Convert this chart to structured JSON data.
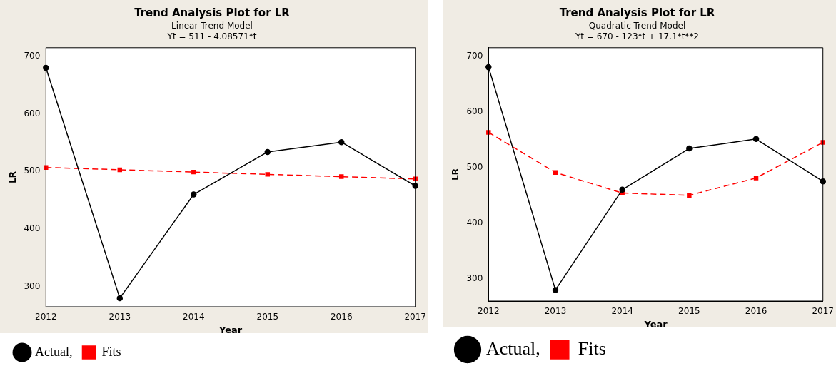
{
  "chart_data": [
    {
      "type": "line",
      "title": "Trend Analysis Plot for LR",
      "subtitle": "Linear Trend Model",
      "annotations": [
        "Yt = 511 - 4.08571*t"
      ],
      "xlabel": "Year",
      "ylabel": "LR",
      "categories": [
        "2012",
        "2013",
        "2014",
        "2015",
        "2016",
        "2017"
      ],
      "series": [
        {
          "name": "Actual,",
          "color": "#000000",
          "marker": "circle",
          "line_style": "solid",
          "values": [
            680,
            280,
            460,
            534,
            551,
            475
          ]
        },
        {
          "name": "Fits",
          "color": "#ff0000",
          "marker": "square",
          "line_style": "dashed",
          "values": [
            507,
            503,
            499,
            495,
            491,
            487
          ]
        }
      ],
      "ylim": [
        265,
        715
      ],
      "yticks": [
        300,
        400,
        500,
        600,
        700
      ],
      "grid": false,
      "legend": "bottom left"
    },
    {
      "type": "line",
      "title": "Trend Analysis Plot for LR",
      "subtitle": "Quadratic Trend Model",
      "annotations": [
        "Yt = 670 - 123*t + 17.1*t**2"
      ],
      "xlabel": "Year",
      "ylabel": "LR",
      "categories": [
        "2012",
        "2013",
        "2014",
        "2015",
        "2016",
        "2017"
      ],
      "series": [
        {
          "name": "Actual,",
          "color": "#000000",
          "marker": "circle",
          "line_style": "solid",
          "values": [
            680,
            280,
            460,
            534,
            551,
            475
          ]
        },
        {
          "name": "Fits",
          "color": "#ff0000",
          "marker": "square",
          "line_style": "dashed",
          "values": [
            563,
            491,
            454,
            450,
            481,
            545
          ]
        }
      ],
      "ylim": [
        260,
        715
      ],
      "yticks": [
        300,
        400,
        500,
        600,
        700
      ],
      "grid": false,
      "legend": "bottom left"
    }
  ]
}
